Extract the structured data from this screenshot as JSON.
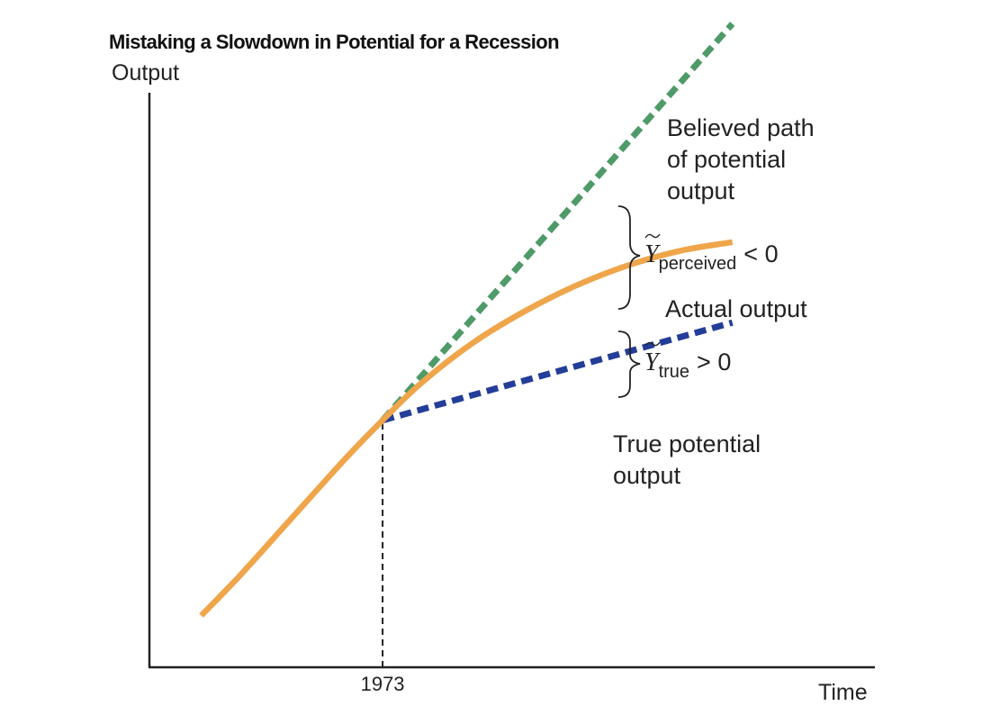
{
  "chart_data": {
    "type": "line",
    "title": "Mistaking a Slowdown in Potential for a Recession",
    "ylabel": "Output",
    "xlabel": "Time",
    "xlim": [
      1955,
      2011
    ],
    "ylim": [
      0,
      100
    ],
    "x_ticks": [
      {
        "value": 1973,
        "label": "1973"
      }
    ],
    "grid": false,
    "series": [
      {
        "name": "Actual output",
        "style": "solid",
        "color": "#EFA54A",
        "points": [
          [
            1959,
            9
          ],
          [
            1962,
            16
          ],
          [
            1966,
            26
          ],
          [
            1970,
            36
          ],
          [
            1973,
            43
          ],
          [
            1976,
            49.5
          ],
          [
            1980,
            56.5
          ],
          [
            1984,
            62
          ],
          [
            1988,
            66.5
          ],
          [
            1992,
            70
          ],
          [
            1996,
            72.5
          ],
          [
            2000,
            74
          ]
        ]
      },
      {
        "name": "Believed path of potential output",
        "style": "dashed",
        "color": "#4E9A68",
        "points": [
          [
            1973,
            43
          ],
          [
            2000,
            112
          ]
        ]
      },
      {
        "name": "True potential output",
        "style": "dashed",
        "color": "#233D99",
        "points": [
          [
            1973,
            43
          ],
          [
            2000,
            60
          ]
        ]
      }
    ],
    "labels": [
      {
        "series": "Believed path of potential output",
        "lines": [
          "Believed path",
          "of potential",
          "output"
        ]
      },
      {
        "series": "Actual output",
        "lines": [
          "Actual output"
        ]
      },
      {
        "series": "True potential output",
        "lines": [
          "True potential",
          "output"
        ]
      }
    ],
    "annotations": [
      {
        "symbol": "Y",
        "subscript": "perceived",
        "relation": "< 0",
        "spans": [
          "Believed path of potential output",
          "Actual output"
        ]
      },
      {
        "symbol": "Y",
        "subscript": "true",
        "relation": "> 0",
        "spans": [
          "Actual output",
          "True potential output"
        ]
      }
    ],
    "reference_line": {
      "x": 1973,
      "style": "dashed",
      "color": "#222222"
    }
  },
  "colors": {
    "axis": "#222222",
    "actual": "#EFA54A",
    "believed": "#4E9A68",
    "true_potential": "#233D99"
  }
}
